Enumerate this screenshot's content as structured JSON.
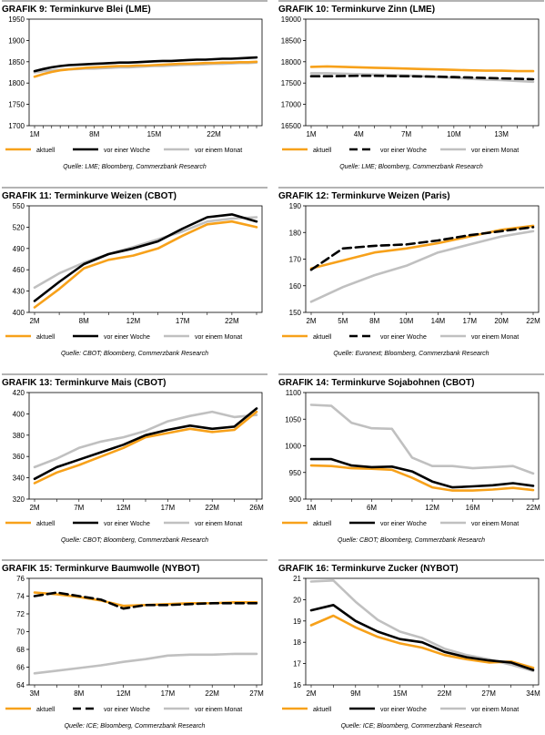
{
  "colors": {
    "aktuell": "#f7a11a",
    "woche": "#000000",
    "monat": "#c0c0c0",
    "rule": "#b3b3b3"
  },
  "legend": {
    "aktuell": "aktuell",
    "woche": "vor einer Woche",
    "monat": "vor einem Monat"
  },
  "chart_data": [
    {
      "type": "line",
      "prefix": "GRAFIK 9",
      "title": "Terminkurve Blei (LME)",
      "source": "Quelle: LME; Bloomberg, Commerzbank Research",
      "ylim": [
        1700,
        1950
      ],
      "yticks": [
        1700,
        1750,
        1800,
        1850,
        1900,
        1950
      ],
      "xlabels": [
        "1M",
        "8M",
        "15M",
        "22M"
      ],
      "xlabel_index": [
        0,
        7,
        14,
        21
      ],
      "dash_week": false,
      "series": [
        {
          "key": "aktuell",
          "values": [
            1815,
            1821,
            1826,
            1830,
            1832,
            1834,
            1836,
            1837,
            1838,
            1839,
            1840,
            1840,
            1841,
            1841,
            1842,
            1843,
            1844,
            1845,
            1845,
            1846,
            1847,
            1847,
            1848,
            1848,
            1849,
            1849,
            1850
          ]
        },
        {
          "key": "woche",
          "values": [
            1828,
            1833,
            1837,
            1840,
            1842,
            1843,
            1844,
            1845,
            1846,
            1847,
            1848,
            1848,
            1849,
            1850,
            1851,
            1852,
            1852,
            1853,
            1854,
            1855,
            1855,
            1856,
            1857,
            1857,
            1858,
            1859,
            1860
          ]
        },
        {
          "key": "monat",
          "values": [
            1825,
            1828,
            1830,
            1831,
            1832,
            1833,
            1834,
            1834,
            1835,
            1836,
            1837,
            1837,
            1838,
            1839,
            1840,
            1840,
            1841,
            1842,
            1843,
            1843,
            1844,
            1845,
            1845,
            1846,
            1847,
            1847,
            1848
          ]
        }
      ]
    },
    {
      "type": "line",
      "prefix": "GRAFIK 10",
      "title": "Terminkurve Zinn (LME)",
      "source": "Quelle: LME; Bloomberg, Commerzbank Research",
      "ylim": [
        16500,
        19000
      ],
      "yticks": [
        16500,
        17000,
        17500,
        18000,
        18500,
        19000
      ],
      "xlabels": [
        "1M",
        "4M",
        "7M",
        "10M",
        "13M"
      ],
      "xlabel_index": [
        0,
        3,
        6,
        9,
        12
      ],
      "dash_week": true,
      "series": [
        {
          "key": "aktuell",
          "values": [
            17880,
            17890,
            17880,
            17870,
            17860,
            17850,
            17840,
            17830,
            17820,
            17810,
            17800,
            17790,
            17790,
            17780,
            17780
          ]
        },
        {
          "key": "woche",
          "values": [
            17660,
            17660,
            17665,
            17670,
            17670,
            17665,
            17660,
            17655,
            17650,
            17640,
            17630,
            17620,
            17610,
            17600,
            17590
          ]
        },
        {
          "key": "monat",
          "values": [
            17730,
            17730,
            17720,
            17710,
            17700,
            17690,
            17680,
            17660,
            17640,
            17620,
            17600,
            17580,
            17570,
            17550,
            17530
          ]
        }
      ]
    },
    {
      "type": "line",
      "prefix": "GRAFIK 11",
      "title": "Terminkurve Weizen (CBOT)",
      "source": "Quelle: CBOT; Bloomberg, Commerzbank Research",
      "ylim": [
        400,
        550
      ],
      "yticks": [
        400,
        430,
        460,
        490,
        520,
        550
      ],
      "xlabels": [
        "2M",
        "8M",
        "12M",
        "17M",
        "22M"
      ],
      "xlabel_index": [
        0,
        2,
        4,
        6,
        8
      ],
      "dash_week": false,
      "series": [
        {
          "key": "aktuell",
          "values": [
            407,
            433,
            462,
            474,
            480,
            490,
            508,
            524,
            528,
            520
          ]
        },
        {
          "key": "woche",
          "values": [
            416,
            443,
            468,
            482,
            490,
            500,
            518,
            534,
            538,
            528
          ]
        },
        {
          "key": "monat",
          "values": [
            435,
            455,
            470,
            482,
            492,
            503,
            514,
            528,
            532,
            534
          ]
        }
      ]
    },
    {
      "type": "line",
      "prefix": "GRAFIK 12",
      "title": "Terminkurve Weizen (Paris)",
      "source": "Quelle: Euronext; Bloomberg, Commerzbank Research",
      "ylim": [
        150,
        190
      ],
      "yticks": [
        150,
        160,
        170,
        180,
        190
      ],
      "xlabels": [
        "2M",
        "5M",
        "8M",
        "10M",
        "14M",
        "17M",
        "20M",
        "22M"
      ],
      "xlabel_index": [
        0,
        1,
        2,
        3,
        4,
        5,
        6,
        7
      ],
      "dash_week": true,
      "series": [
        {
          "key": "aktuell",
          "values": [
            166.5,
            169.5,
            172.5,
            174.0,
            176.0,
            178.5,
            181.0,
            182.5
          ]
        },
        {
          "key": "woche",
          "values": [
            166.0,
            174.0,
            175.0,
            175.5,
            177.0,
            179.0,
            180.5,
            182.0
          ]
        },
        {
          "key": "monat",
          "values": [
            154.0,
            159.5,
            164.0,
            167.5,
            172.5,
            175.5,
            178.5,
            180.5
          ]
        }
      ]
    },
    {
      "type": "line",
      "prefix": "GRAFIK 13",
      "title": "Terminkurve Mais (CBOT)",
      "source": "Quelle: CBOT; Bloomberg, Commerzbank Research",
      "ylim": [
        320,
        420
      ],
      "yticks": [
        320,
        340,
        360,
        380,
        400,
        420
      ],
      "xlabels": [
        "2M",
        "7M",
        "12M",
        "17M",
        "22M",
        "26M"
      ],
      "xlabel_index": [
        0,
        2,
        4,
        6,
        8,
        10
      ],
      "dash_week": false,
      "series": [
        {
          "key": "aktuell",
          "values": [
            335,
            345,
            352,
            360,
            368,
            378,
            382,
            386,
            383,
            385,
            402
          ]
        },
        {
          "key": "woche",
          "values": [
            339,
            350,
            357,
            364,
            371,
            380,
            385,
            389,
            386,
            388,
            405
          ]
        },
        {
          "key": "monat",
          "values": [
            350,
            358,
            368,
            374,
            378,
            384,
            393,
            398,
            402,
            397,
            399
          ]
        }
      ]
    },
    {
      "type": "line",
      "prefix": "GRAFIK 14",
      "title": "Terminkurve Sojabohnen (CBOT)",
      "source": "Quelle: CBOT; Bloomberg, Commerzbank Research",
      "ylim": [
        900,
        1100
      ],
      "yticks": [
        900,
        950,
        1000,
        1050,
        1100
      ],
      "xlabels": [
        "1M",
        "6M",
        "12M",
        "16M",
        "22M"
      ],
      "xlabel_index": [
        0,
        3,
        6,
        8,
        11
      ],
      "dash_week": false,
      "series": [
        {
          "key": "aktuell",
          "values": [
            963,
            962,
            958,
            957,
            955,
            940,
            922,
            916,
            916,
            918,
            921,
            917
          ]
        },
        {
          "key": "woche",
          "values": [
            975,
            975,
            963,
            960,
            961,
            952,
            933,
            922,
            924,
            926,
            930,
            925
          ]
        },
        {
          "key": "monat",
          "values": [
            1077,
            1075,
            1043,
            1033,
            1032,
            978,
            962,
            962,
            958,
            960,
            962,
            948
          ]
        }
      ]
    },
    {
      "type": "line",
      "prefix": "GRAFIK 15",
      "title": "Terminkurve Baumwolle (NYBOT)",
      "source": "Quelle: ICE; Bloomberg, Commerzbank Research",
      "ylim": [
        64,
        76
      ],
      "yticks": [
        64,
        66,
        68,
        70,
        72,
        74,
        76
      ],
      "xlabels": [
        "3M",
        "8M",
        "12M",
        "17M",
        "22M",
        "27M"
      ],
      "xlabel_index": [
        0,
        2,
        4,
        6,
        8,
        10
      ],
      "dash_week": true,
      "series": [
        {
          "key": "aktuell",
          "values": [
            74.4,
            74.2,
            73.9,
            73.5,
            72.9,
            73.0,
            73.1,
            73.2,
            73.2,
            73.3,
            73.3
          ]
        },
        {
          "key": "woche",
          "values": [
            74.0,
            74.4,
            74.0,
            73.6,
            72.6,
            73.0,
            73.0,
            73.1,
            73.2,
            73.2,
            73.2
          ]
        },
        {
          "key": "monat",
          "values": [
            65.3,
            65.6,
            65.9,
            66.2,
            66.6,
            66.9,
            67.3,
            67.4,
            67.4,
            67.5,
            67.5
          ]
        }
      ]
    },
    {
      "type": "line",
      "prefix": "GRAFIK 16",
      "title": "Terminkurve Zucker (NYBOT)",
      "source": "Quelle: ICE; Bloomberg, Commerzbank Research",
      "ylim": [
        16,
        21
      ],
      "yticks": [
        16.0,
        17.0,
        18.0,
        19.0,
        20.0,
        21.0
      ],
      "xlabels": [
        "2M",
        "9M",
        "15M",
        "22M",
        "27M",
        "34M"
      ],
      "xlabel_index": [
        0,
        2,
        4,
        6,
        8,
        10
      ],
      "dash_week": false,
      "series": [
        {
          "key": "aktuell",
          "values": [
            18.8,
            19.25,
            18.7,
            18.25,
            17.95,
            17.75,
            17.4,
            17.2,
            17.05,
            17.1,
            16.8
          ]
        },
        {
          "key": "woche",
          "values": [
            19.5,
            19.75,
            19.0,
            18.5,
            18.15,
            18.0,
            17.55,
            17.3,
            17.15,
            17.05,
            16.7
          ]
        },
        {
          "key": "monat",
          "values": [
            20.85,
            20.9,
            19.9,
            19.05,
            18.5,
            18.2,
            17.7,
            17.4,
            17.2,
            16.95,
            16.65
          ]
        }
      ]
    }
  ]
}
